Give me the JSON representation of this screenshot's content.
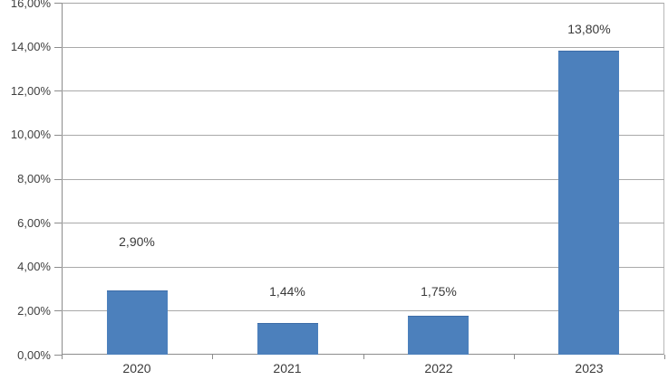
{
  "chart_data": {
    "type": "bar",
    "title": "",
    "xlabel": "",
    "ylabel": "",
    "categories": [
      "2020",
      "2021",
      "2022",
      "2023"
    ],
    "values": [
      2.9,
      1.44,
      1.75,
      13.8
    ],
    "data_labels": [
      "2,90%",
      "1,44%",
      "1,75%",
      "13,80%"
    ],
    "y_tick_labels": [
      "0,00%",
      "2,00%",
      "4,00%",
      "6,00%",
      "8,00%",
      "10,00%",
      "12,00%",
      "14,00%",
      "16,00%"
    ],
    "ylim": [
      0,
      16
    ],
    "y_tick_step": 2,
    "grid": "horizontal",
    "legend": "none",
    "number_format": "comma-decimal-percent",
    "colors": {
      "bar_fill": "#4c80bc",
      "bar_border": "#3d6da8",
      "gridline": "#a9a9a9",
      "axis_line": "#8c8c8c",
      "text": "#3a3a3a",
      "background": "#ffffff"
    }
  }
}
